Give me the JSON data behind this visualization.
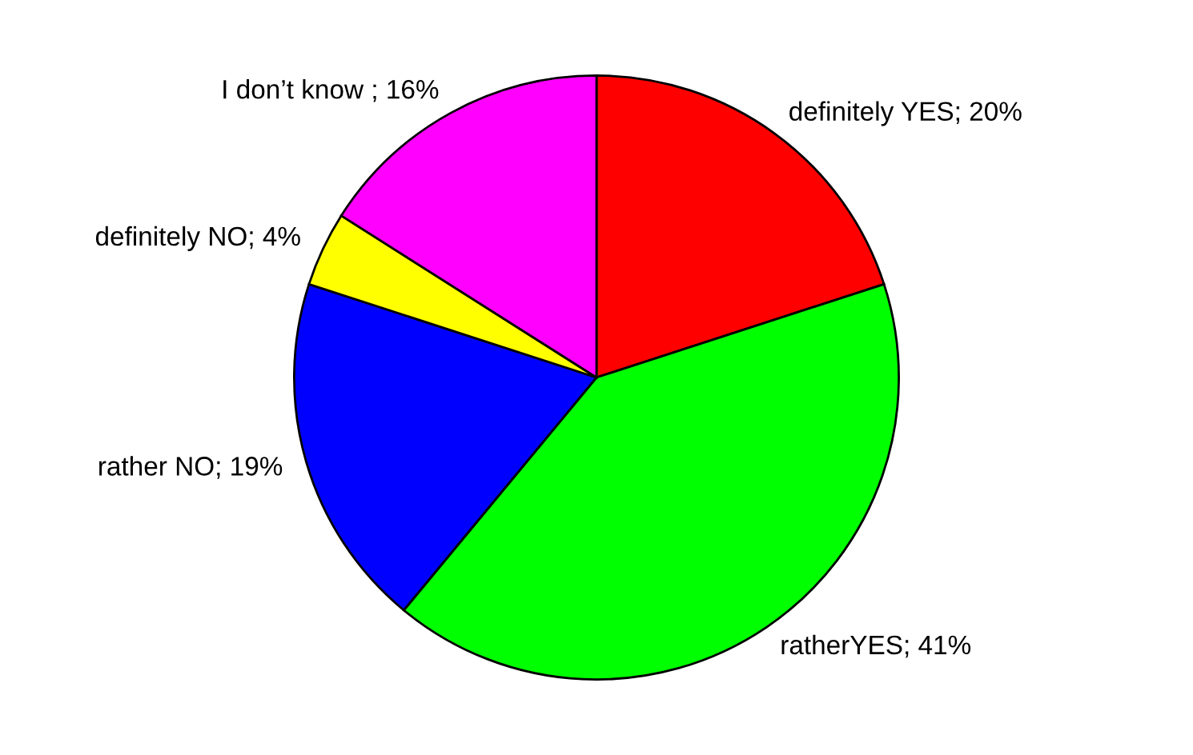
{
  "chart_data": {
    "type": "pie",
    "categories": [
      "definitely YES",
      "ratherYES",
      "rather NO",
      "definitely NO",
      "I don’t know "
    ],
    "values": [
      20,
      41,
      19,
      4,
      16
    ],
    "value_labels": [
      "20%",
      "41%",
      "19%",
      "4%",
      "16%"
    ],
    "colors": [
      "#ff0000",
      "#00ff00",
      "#0000ff",
      "#ffff00",
      "#ff00ff"
    ],
    "legend": false
  }
}
